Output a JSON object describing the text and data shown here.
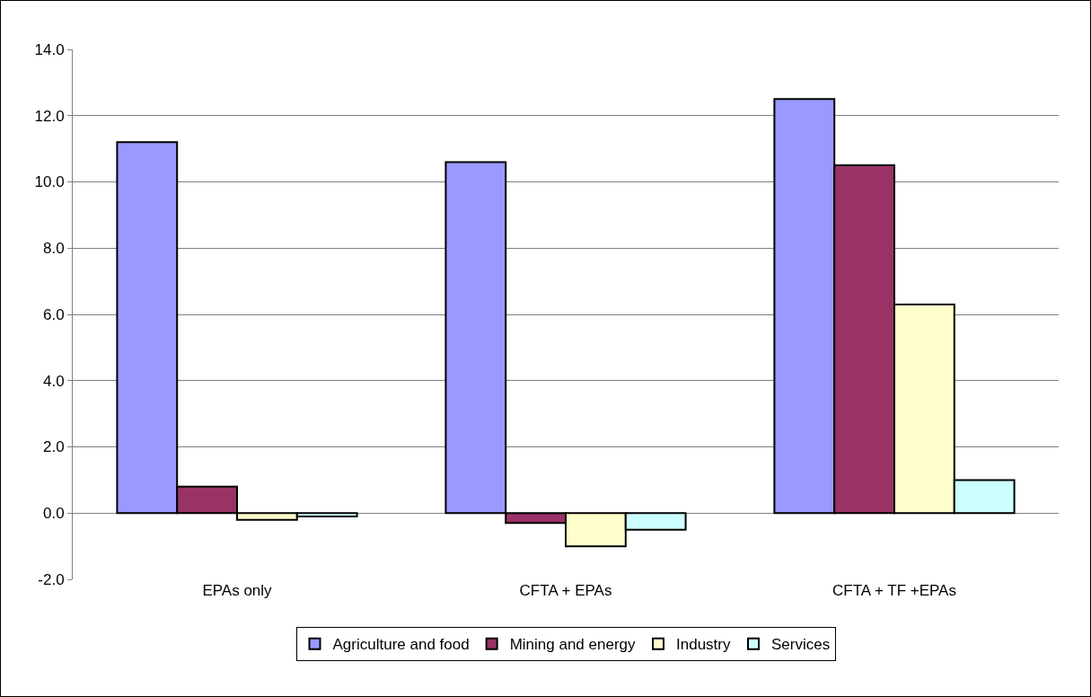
{
  "chart_data": {
    "type": "bar",
    "categories": [
      "EPAs only",
      "CFTA + EPAs",
      "CFTA + TF +EPAs"
    ],
    "series": [
      {
        "name": "Agriculture and food",
        "color": "#9999ff",
        "values": [
          11.2,
          10.6,
          12.5
        ]
      },
      {
        "name": "Mining and energy",
        "color": "#993366",
        "values": [
          0.8,
          -0.3,
          10.5
        ]
      },
      {
        "name": "Industry",
        "color": "#ffffcc",
        "values": [
          -0.2,
          -1.0,
          6.3
        ]
      },
      {
        "name": "Services",
        "color": "#ccffff",
        "values": [
          -0.1,
          -0.5,
          1.0
        ]
      }
    ],
    "ylim": [
      -2,
      14
    ],
    "yticks": [
      {
        "value": -2,
        "label": "-2.0"
      },
      {
        "value": 0,
        "label": "0.0"
      },
      {
        "value": 2,
        "label": "2.0"
      },
      {
        "value": 4,
        "label": "4.0"
      },
      {
        "value": 6,
        "label": "6.0"
      },
      {
        "value": 8,
        "label": "8.0"
      },
      {
        "value": 10,
        "label": "10.0"
      },
      {
        "value": 12,
        "label": "12.0"
      },
      {
        "value": 14,
        "label": "14.0"
      }
    ],
    "grid": "y",
    "legend": "bottom"
  }
}
